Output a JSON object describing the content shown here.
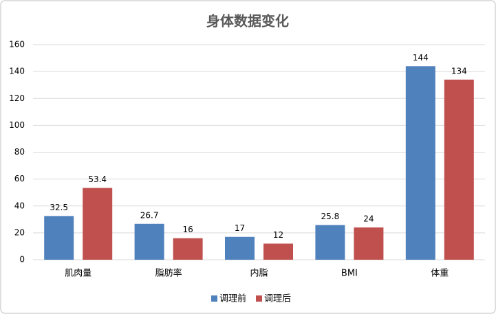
{
  "chart_data": {
    "type": "bar",
    "title": "身体数据变化",
    "categories": [
      "肌肉量",
      "脂肪率",
      "内脂",
      "BMI",
      "体重"
    ],
    "series": [
      {
        "name": "调理前",
        "color": "#4f81bd",
        "values": [
          32.5,
          26.7,
          17,
          25.8,
          144
        ]
      },
      {
        "name": "调理后",
        "color": "#c0504d",
        "values": [
          53.4,
          16,
          12,
          24,
          134
        ]
      }
    ],
    "ylim": [
      0,
      160
    ],
    "yticks": [
      0,
      20,
      40,
      60,
      80,
      100,
      120,
      140,
      160
    ],
    "grid": true,
    "legend": "bottom"
  }
}
